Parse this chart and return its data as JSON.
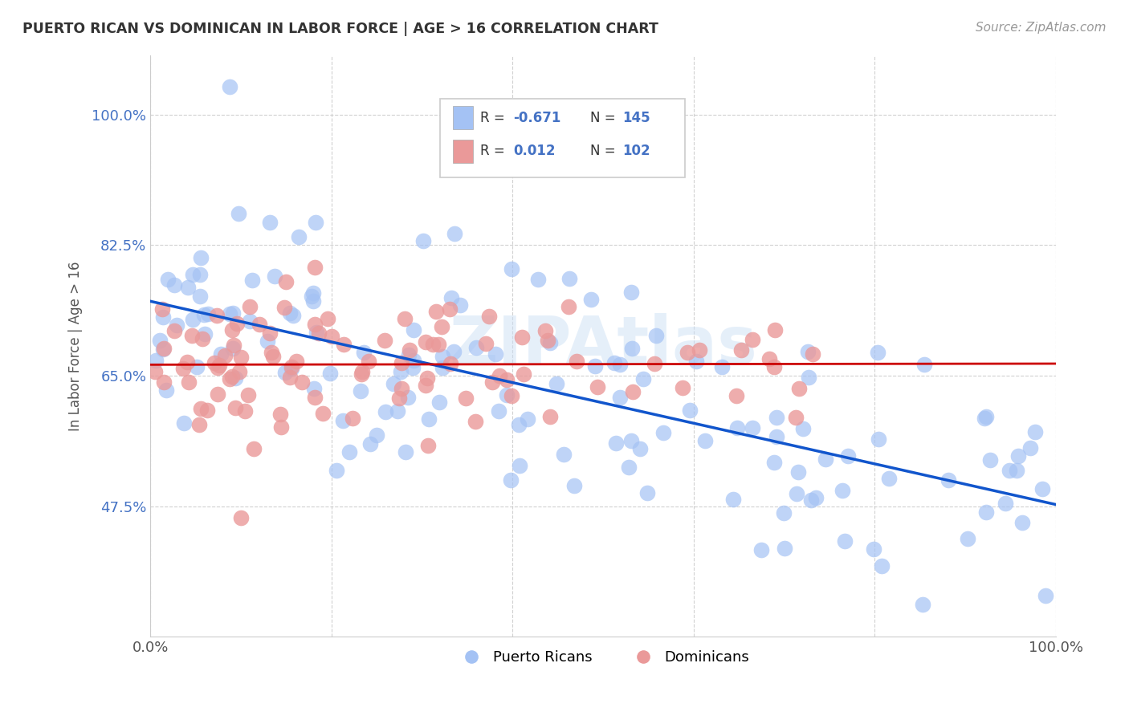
{
  "title": "PUERTO RICAN VS DOMINICAN IN LABOR FORCE | AGE > 16 CORRELATION CHART",
  "source": "Source: ZipAtlas.com",
  "ylabel": "In Labor Force | Age > 16",
  "xlim": [
    0.0,
    1.0
  ],
  "ylim": [
    0.3,
    1.08
  ],
  "x_tick_labels": [
    "0.0%",
    "",
    "",
    "",
    "",
    "100.0%"
  ],
  "y_tick_vals": [
    0.475,
    0.65,
    0.825,
    1.0
  ],
  "y_tick_labels": [
    "47.5%",
    "65.0%",
    "82.5%",
    "100.0%"
  ],
  "blue_color": "#a4c2f4",
  "pink_color": "#ea9999",
  "blue_line_color": "#1155cc",
  "pink_line_color": "#cc0000",
  "watermark": "ZIPAtlas",
  "r_blue": -0.671,
  "n_blue": 145,
  "r_pink": 0.012,
  "n_pink": 102,
  "blue_seed": 42,
  "pink_seed": 7
}
